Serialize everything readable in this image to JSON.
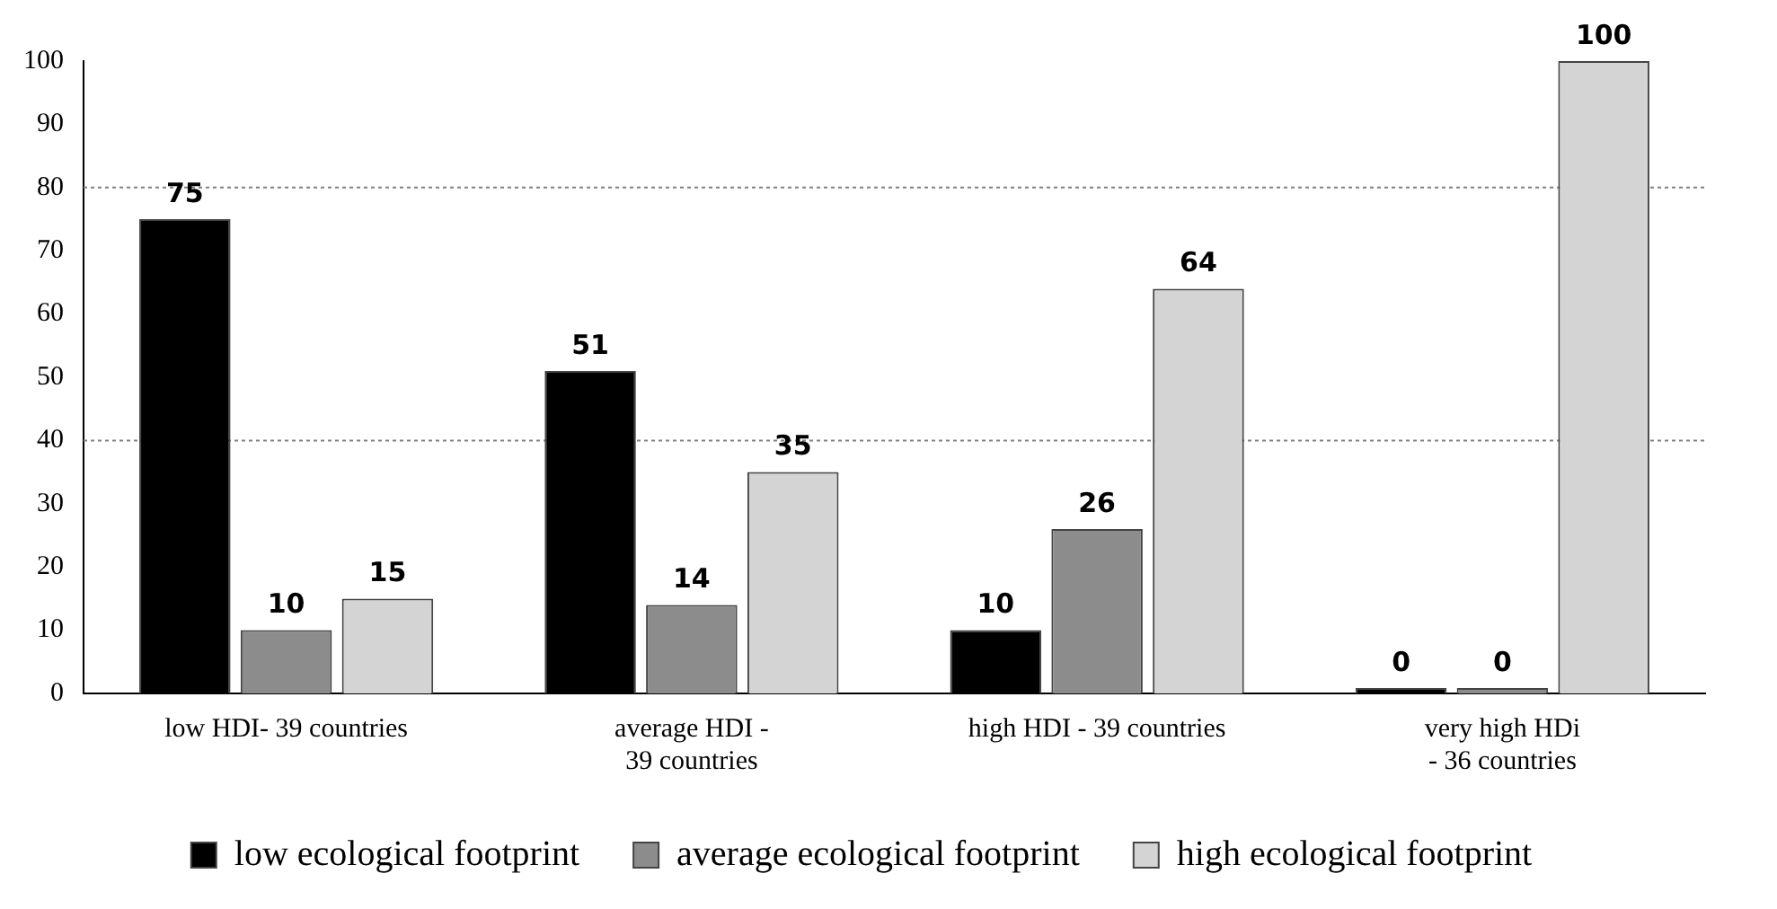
{
  "chart_data": {
    "type": "bar",
    "categories": [
      "low HDI- 39 countries",
      "average HDI - 39 countries",
      "high HDI - 39 countries",
      "very high HDi - 36 countries"
    ],
    "series": [
      {
        "name": "low ecological footprint",
        "color": "#000000",
        "values": [
          75,
          51,
          10,
          0
        ]
      },
      {
        "name": "average ecological footprint",
        "color": "#8c8c8c",
        "values": [
          10,
          14,
          26,
          0
        ]
      },
      {
        "name": "high ecological footprint",
        "color": "#d4d4d4",
        "values": [
          15,
          35,
          64,
          100
        ]
      }
    ],
    "ylim": [
      0,
      100
    ],
    "yticks": [
      0,
      10,
      20,
      30,
      40,
      50,
      60,
      70,
      80,
      90,
      100
    ],
    "grid": false,
    "legend": "bottom",
    "data_labels": true,
    "ref_lines": [
      {
        "axis": "y",
        "value": 40,
        "color": "#808080",
        "line_style": "dotted"
      },
      {
        "axis": "y",
        "value": 80,
        "color": "#808080",
        "line_style": "dotted"
      }
    ]
  }
}
